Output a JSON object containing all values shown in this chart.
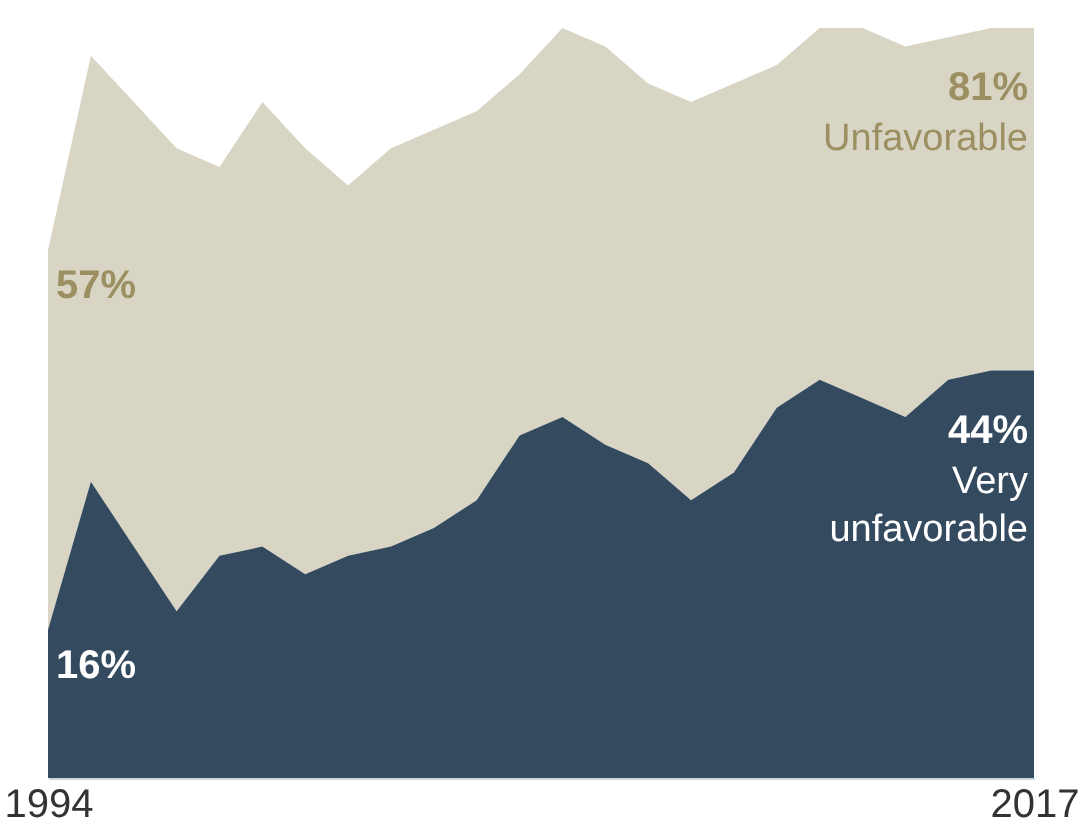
{
  "chart_data": {
    "type": "area",
    "xlim": [
      1994,
      2017
    ],
    "xticks": [
      1994,
      2017
    ],
    "tick_labels": "x",
    "x": [
      1994,
      1995,
      1996,
      1997,
      1998,
      1999,
      2000,
      2001,
      2002,
      2003,
      2004,
      2005,
      2006,
      2007,
      2008,
      2009,
      2010,
      2011,
      2012,
      2013,
      2014,
      2015,
      2016,
      2017
    ],
    "series": [
      {
        "name": "Unfavorable",
        "color": "#d9d5c5",
        "values": [
          57,
          78,
          73,
          68,
          66,
          73,
          68,
          64,
          68,
          70,
          72,
          76,
          81,
          79,
          75,
          73,
          75,
          77,
          81,
          81,
          79,
          80,
          81,
          81
        ],
        "value_labels": [
          "57%",
          null,
          null,
          null,
          null,
          null,
          null,
          null,
          null,
          null,
          null,
          null,
          null,
          null,
          null,
          null,
          null,
          null,
          null,
          null,
          null,
          null,
          null,
          "81%"
        ]
      },
      {
        "name": "Very unfavorable",
        "color": "#344a5e",
        "values": [
          16,
          32,
          25,
          18,
          24,
          25,
          22,
          24,
          25,
          27,
          30,
          37,
          39,
          36,
          34,
          30,
          33,
          40,
          43,
          41,
          39,
          43,
          44,
          44
        ],
        "value_labels": [
          "16%",
          null,
          null,
          null,
          null,
          null,
          null,
          null,
          null,
          null,
          null,
          null,
          null,
          null,
          null,
          null,
          null,
          null,
          null,
          null,
          null,
          null,
          null,
          "44%"
        ]
      }
    ]
  }
}
